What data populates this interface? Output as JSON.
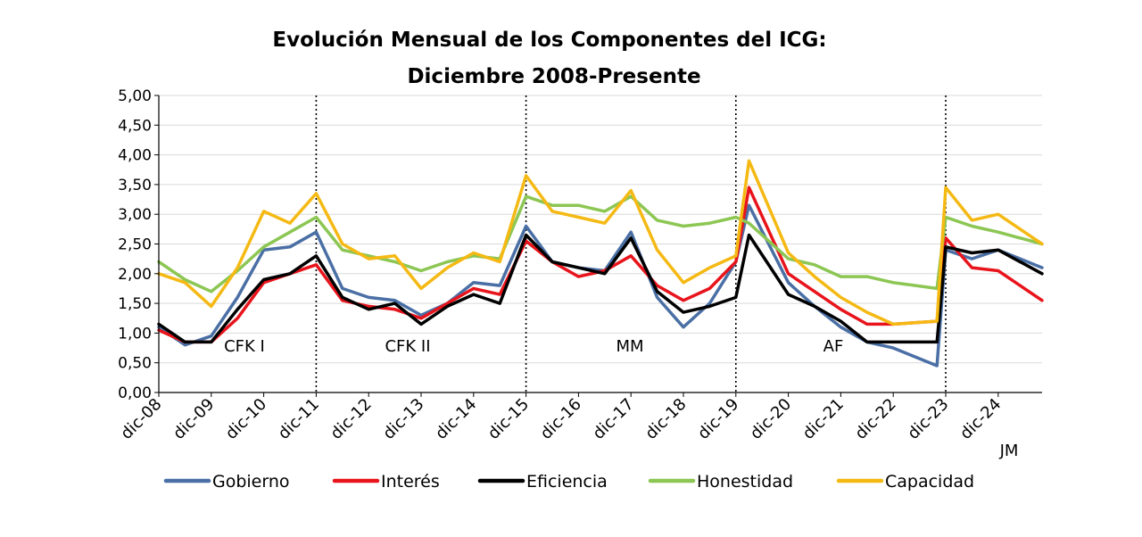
{
  "chart_data": {
    "type": "line",
    "title": "Evolución Mensual de los Componentes del ICG:",
    "subtitle": "Diciembre 2008-Presente",
    "xlabel": "",
    "ylabel": "",
    "ylim": [
      0,
      5
    ],
    "y_ticks": [
      "0,00",
      "0,50",
      "1,00",
      "1,50",
      "2,00",
      "2,50",
      "3,00",
      "3,50",
      "4,00",
      "4,50",
      "5,00"
    ],
    "x_ticks": [
      "dic-08",
      "dic-09",
      "dic-10",
      "dic-11",
      "dic-12",
      "dic-13",
      "dic-14",
      "dic-15",
      "dic-16",
      "dic-17",
      "dic-18",
      "dic-19",
      "dic-20",
      "dic-21",
      "dic-22",
      "dic-23",
      "dic-24",
      "JM"
    ],
    "grid": true,
    "legend_position": "bottom",
    "period_labels": [
      "CFK I",
      "CFK II",
      "MM",
      "AF"
    ],
    "period_dividers": [
      "dic-11",
      "dic-15",
      "dic-19",
      "dic-23"
    ],
    "series": [
      {
        "name": "Gobierno",
        "color": "#4a6fa5",
        "points": [
          [
            "dic-08",
            1.1
          ],
          [
            "jun-09",
            0.8
          ],
          [
            "dic-09",
            0.95
          ],
          [
            "jun-10",
            1.6
          ],
          [
            "dic-10",
            2.4
          ],
          [
            "jun-11",
            2.45
          ],
          [
            "dic-11",
            2.7
          ],
          [
            "jun-12",
            1.75
          ],
          [
            "dic-12",
            1.6
          ],
          [
            "jun-13",
            1.55
          ],
          [
            "dic-13",
            1.3
          ],
          [
            "jun-14",
            1.5
          ],
          [
            "dic-14",
            1.85
          ],
          [
            "jun-15",
            1.8
          ],
          [
            "dic-15",
            2.8
          ],
          [
            "jun-16",
            2.2
          ],
          [
            "dic-16",
            2.1
          ],
          [
            "jun-17",
            2.05
          ],
          [
            "dic-17",
            2.7
          ],
          [
            "jun-18",
            1.6
          ],
          [
            "dic-18",
            1.1
          ],
          [
            "jun-19",
            1.5
          ],
          [
            "dic-19",
            2.2
          ],
          [
            "mar-20",
            3.15
          ],
          [
            "dic-20",
            1.85
          ],
          [
            "jun-21",
            1.45
          ],
          [
            "dic-21",
            1.1
          ],
          [
            "jun-22",
            0.85
          ],
          [
            "dic-22",
            0.75
          ],
          [
            "oct-23",
            0.45
          ],
          [
            "dic-23",
            2.4
          ],
          [
            "jun-24",
            2.25
          ],
          [
            "dic-24",
            2.4
          ],
          [
            "JM",
            2.1
          ]
        ]
      },
      {
        "name": "Interés",
        "color": "#e8141c",
        "points": [
          [
            "dic-08",
            1.05
          ],
          [
            "jun-09",
            0.85
          ],
          [
            "dic-09",
            0.85
          ],
          [
            "jun-10",
            1.25
          ],
          [
            "dic-10",
            1.85
          ],
          [
            "jun-11",
            2.0
          ],
          [
            "dic-11",
            2.15
          ],
          [
            "jun-12",
            1.55
          ],
          [
            "dic-12",
            1.45
          ],
          [
            "jun-13",
            1.4
          ],
          [
            "dic-13",
            1.25
          ],
          [
            "jun-14",
            1.5
          ],
          [
            "dic-14",
            1.75
          ],
          [
            "jun-15",
            1.65
          ],
          [
            "dic-15",
            2.55
          ],
          [
            "jun-16",
            2.2
          ],
          [
            "dic-16",
            1.95
          ],
          [
            "jun-17",
            2.05
          ],
          [
            "dic-17",
            2.3
          ],
          [
            "jun-18",
            1.8
          ],
          [
            "dic-18",
            1.55
          ],
          [
            "jun-19",
            1.75
          ],
          [
            "dic-19",
            2.2
          ],
          [
            "mar-20",
            3.45
          ],
          [
            "dic-20",
            2.0
          ],
          [
            "jun-21",
            1.7
          ],
          [
            "dic-21",
            1.4
          ],
          [
            "jun-22",
            1.15
          ],
          [
            "dic-22",
            1.15
          ],
          [
            "oct-23",
            1.2
          ],
          [
            "dic-23",
            2.6
          ],
          [
            "jun-24",
            2.1
          ],
          [
            "dic-24",
            2.05
          ],
          [
            "JM",
            1.55
          ]
        ]
      },
      {
        "name": "Eficiencia",
        "color": "#000000",
        "points": [
          [
            "dic-08",
            1.15
          ],
          [
            "jun-09",
            0.85
          ],
          [
            "dic-09",
            0.85
          ],
          [
            "jun-10",
            1.4
          ],
          [
            "dic-10",
            1.9
          ],
          [
            "jun-11",
            2.0
          ],
          [
            "dic-11",
            2.3
          ],
          [
            "jun-12",
            1.6
          ],
          [
            "dic-12",
            1.4
          ],
          [
            "jun-13",
            1.5
          ],
          [
            "dic-13",
            1.15
          ],
          [
            "jun-14",
            1.45
          ],
          [
            "dic-14",
            1.65
          ],
          [
            "jun-15",
            1.5
          ],
          [
            "dic-15",
            2.65
          ],
          [
            "jun-16",
            2.2
          ],
          [
            "dic-16",
            2.1
          ],
          [
            "jun-17",
            2.0
          ],
          [
            "dic-17",
            2.6
          ],
          [
            "jun-18",
            1.7
          ],
          [
            "dic-18",
            1.35
          ],
          [
            "jun-19",
            1.45
          ],
          [
            "dic-19",
            1.6
          ],
          [
            "mar-20",
            2.65
          ],
          [
            "dic-20",
            1.65
          ],
          [
            "jun-21",
            1.45
          ],
          [
            "dic-21",
            1.2
          ],
          [
            "jun-22",
            0.85
          ],
          [
            "dic-22",
            0.85
          ],
          [
            "oct-23",
            0.85
          ],
          [
            "dic-23",
            2.45
          ],
          [
            "jun-24",
            2.35
          ],
          [
            "dic-24",
            2.4
          ],
          [
            "JM",
            2.0
          ]
        ]
      },
      {
        "name": "Honestidad",
        "color": "#8cc653",
        "points": [
          [
            "dic-08",
            2.2
          ],
          [
            "jun-09",
            1.9
          ],
          [
            "dic-09",
            1.7
          ],
          [
            "jun-10",
            2.05
          ],
          [
            "dic-10",
            2.45
          ],
          [
            "jun-11",
            2.7
          ],
          [
            "dic-11",
            2.95
          ],
          [
            "jun-12",
            2.4
          ],
          [
            "dic-12",
            2.3
          ],
          [
            "jun-13",
            2.2
          ],
          [
            "dic-13",
            2.05
          ],
          [
            "jun-14",
            2.2
          ],
          [
            "dic-14",
            2.3
          ],
          [
            "jun-15",
            2.25
          ],
          [
            "dic-15",
            3.3
          ],
          [
            "jun-16",
            3.15
          ],
          [
            "dic-16",
            3.15
          ],
          [
            "jun-17",
            3.05
          ],
          [
            "dic-17",
            3.3
          ],
          [
            "jun-18",
            2.9
          ],
          [
            "dic-18",
            2.8
          ],
          [
            "jun-19",
            2.85
          ],
          [
            "dic-19",
            2.95
          ],
          [
            "mar-20",
            2.85
          ],
          [
            "dic-20",
            2.25
          ],
          [
            "jun-21",
            2.15
          ],
          [
            "dic-21",
            1.95
          ],
          [
            "jun-22",
            1.95
          ],
          [
            "dic-22",
            1.85
          ],
          [
            "oct-23",
            1.75
          ],
          [
            "dic-23",
            2.95
          ],
          [
            "jun-24",
            2.8
          ],
          [
            "dic-24",
            2.7
          ],
          [
            "JM",
            2.5
          ]
        ]
      },
      {
        "name": "Capacidad",
        "color": "#f5b914",
        "points": [
          [
            "dic-08",
            2.0
          ],
          [
            "jun-09",
            1.85
          ],
          [
            "dic-09",
            1.45
          ],
          [
            "jun-10",
            2.1
          ],
          [
            "dic-10",
            3.05
          ],
          [
            "jun-11",
            2.85
          ],
          [
            "dic-11",
            3.35
          ],
          [
            "jun-12",
            2.5
          ],
          [
            "dic-12",
            2.25
          ],
          [
            "jun-13",
            2.3
          ],
          [
            "dic-13",
            1.75
          ],
          [
            "jun-14",
            2.1
          ],
          [
            "dic-14",
            2.35
          ],
          [
            "jun-15",
            2.2
          ],
          [
            "dic-15",
            3.65
          ],
          [
            "jun-16",
            3.05
          ],
          [
            "dic-16",
            2.95
          ],
          [
            "jun-17",
            2.85
          ],
          [
            "dic-17",
            3.4
          ],
          [
            "jun-18",
            2.4
          ],
          [
            "dic-18",
            1.85
          ],
          [
            "jun-19",
            2.1
          ],
          [
            "dic-19",
            2.3
          ],
          [
            "mar-20",
            3.9
          ],
          [
            "dic-20",
            2.35
          ],
          [
            "jun-21",
            1.95
          ],
          [
            "dic-21",
            1.6
          ],
          [
            "jun-22",
            1.35
          ],
          [
            "dic-22",
            1.15
          ],
          [
            "oct-23",
            1.2
          ],
          [
            "dic-23",
            3.45
          ],
          [
            "jun-24",
            2.9
          ],
          [
            "dic-24",
            3.0
          ],
          [
            "JM",
            2.5
          ]
        ]
      }
    ]
  }
}
